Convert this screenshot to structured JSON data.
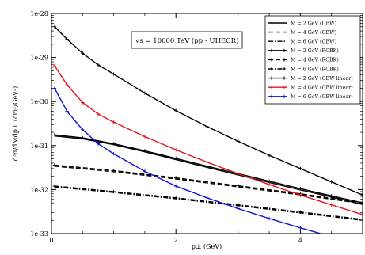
{
  "chart_data": {
    "type": "line",
    "title": "",
    "xlabel": "p⊥ (GeV)",
    "ylabel": "d³σ/dMdp⊥ (cm²/GeV²)",
    "xlim": [
      0,
      5
    ],
    "ylim": [
      1e-33,
      1e-28
    ],
    "yscale": "log",
    "grid": false,
    "legend_position": "top-right",
    "x_ticks": [
      0,
      2,
      4
    ],
    "x_tick_labels": [
      "0",
      "2",
      "4"
    ],
    "y_ticks": [
      1e-33,
      1e-32,
      1e-31,
      1e-30,
      1e-29,
      1e-28
    ],
    "y_tick_labels": [
      "1e-33",
      "1e-32",
      "1e-31",
      "1e-30",
      "1e-29",
      "1e-28"
    ],
    "annotation": "√s = 10000 TeV (pp - UHECR)",
    "series": [
      {
        "name": "M = 2 GeV (GBW)",
        "color": "#000000",
        "style": "solid",
        "marker": "none",
        "x": [
          0.05,
          0.5,
          1,
          1.5,
          2,
          2.5,
          3,
          3.5,
          4,
          4.5,
          5
        ],
        "y": [
          1.65e-31,
          1.42e-31,
          1.05e-31,
          7.2e-32,
          4.8e-32,
          3.2e-32,
          2.15e-32,
          1.45e-32,
          9.8e-33,
          6.8e-33,
          4.6e-33
        ]
      },
      {
        "name": "M = 4 GeV (GBW)",
        "color": "#000000",
        "style": "dashed",
        "marker": "none",
        "x": [
          0.05,
          1,
          2,
          3,
          4,
          5
        ],
        "y": [
          3.4e-32,
          2.55e-32,
          1.75e-32,
          1.15e-32,
          7.6e-33,
          4.8e-33
        ]
      },
      {
        "name": "M = 6 GeV (GBW)",
        "color": "#000000",
        "style": "dashdot",
        "marker": "none",
        "x": [
          0.05,
          1,
          2,
          3,
          4,
          5
        ],
        "y": [
          1.15e-32,
          8.6e-33,
          6.2e-33,
          4.3e-33,
          2.95e-33,
          2e-33
        ]
      },
      {
        "name": "M = 2 GeV (RCBK)",
        "color": "#000000",
        "style": "solid",
        "marker": "plus",
        "x": [
          0.05,
          0.5,
          1,
          1.5,
          2,
          2.5,
          3,
          3.5,
          4,
          4.5,
          5
        ],
        "y": [
          1.75e-31,
          1.5e-31,
          1.1e-31,
          7.6e-32,
          5.1e-32,
          3.4e-32,
          2.3e-32,
          1.55e-32,
          1.05e-32,
          7.2e-33,
          5e-33
        ]
      },
      {
        "name": "M = 4 GeV (RCBK)",
        "color": "#000000",
        "style": "dashed",
        "marker": "plus",
        "x": [
          0.05,
          1,
          2,
          3,
          4,
          5
        ],
        "y": [
          3.6e-32,
          2.7e-32,
          1.85e-32,
          1.22e-32,
          8e-33,
          5.1e-33
        ]
      },
      {
        "name": "M = 6 GeV (RCBK)",
        "color": "#000000",
        "style": "dashdot",
        "marker": "plus",
        "x": [
          0.05,
          1,
          2,
          3,
          4,
          5
        ],
        "y": [
          1.2e-32,
          9e-33,
          6.5e-33,
          4.5e-33,
          3.1e-33,
          2.1e-33
        ]
      },
      {
        "name": "M = 2 GeV (GBW linear)",
        "color": "#000000",
        "style": "solid",
        "marker": "plus",
        "x": [
          0.05,
          0.25,
          0.5,
          0.75,
          1,
          1.5,
          2,
          2.5,
          3,
          3.5,
          4,
          4.5,
          5
        ],
        "y": [
          5e-29,
          2.6e-29,
          1.25e-29,
          6.8e-30,
          4.2e-30,
          1.55e-30,
          6.2e-31,
          2.7e-31,
          1.25e-31,
          6e-32,
          3e-32,
          1.5e-32,
          7.5e-33
        ]
      },
      {
        "name": "M = 4 GeV (GBW linear)",
        "color": "#e8131a",
        "style": "solid",
        "marker": "plus",
        "x": [
          0.05,
          0.25,
          0.5,
          0.75,
          1,
          1.5,
          2,
          2.5,
          3,
          3.5,
          4,
          4.5,
          5
        ],
        "y": [
          6.5e-30,
          2.4e-30,
          9.5e-31,
          5.2e-31,
          3.4e-31,
          1.6e-31,
          8e-32,
          4.2e-32,
          2.3e-32,
          1.3e-32,
          7.5e-33,
          4.5e-33,
          2.7e-33
        ]
      },
      {
        "name": "M = 6 GeV (GBW linear)",
        "color": "#1010d8",
        "style": "solid",
        "marker": "plus",
        "x": [
          0.05,
          0.25,
          0.5,
          0.75,
          1,
          1.5,
          2,
          2.5,
          3,
          3.5,
          4,
          4.5,
          5
        ],
        "y": [
          2e-30,
          6e-31,
          2.3e-31,
          1.1e-31,
          6.5e-32,
          2.6e-32,
          1.2e-32,
          6.5e-33,
          3.7e-33,
          2.2e-33,
          1.35e-33,
          8.5e-34,
          5.5e-34
        ]
      }
    ]
  }
}
